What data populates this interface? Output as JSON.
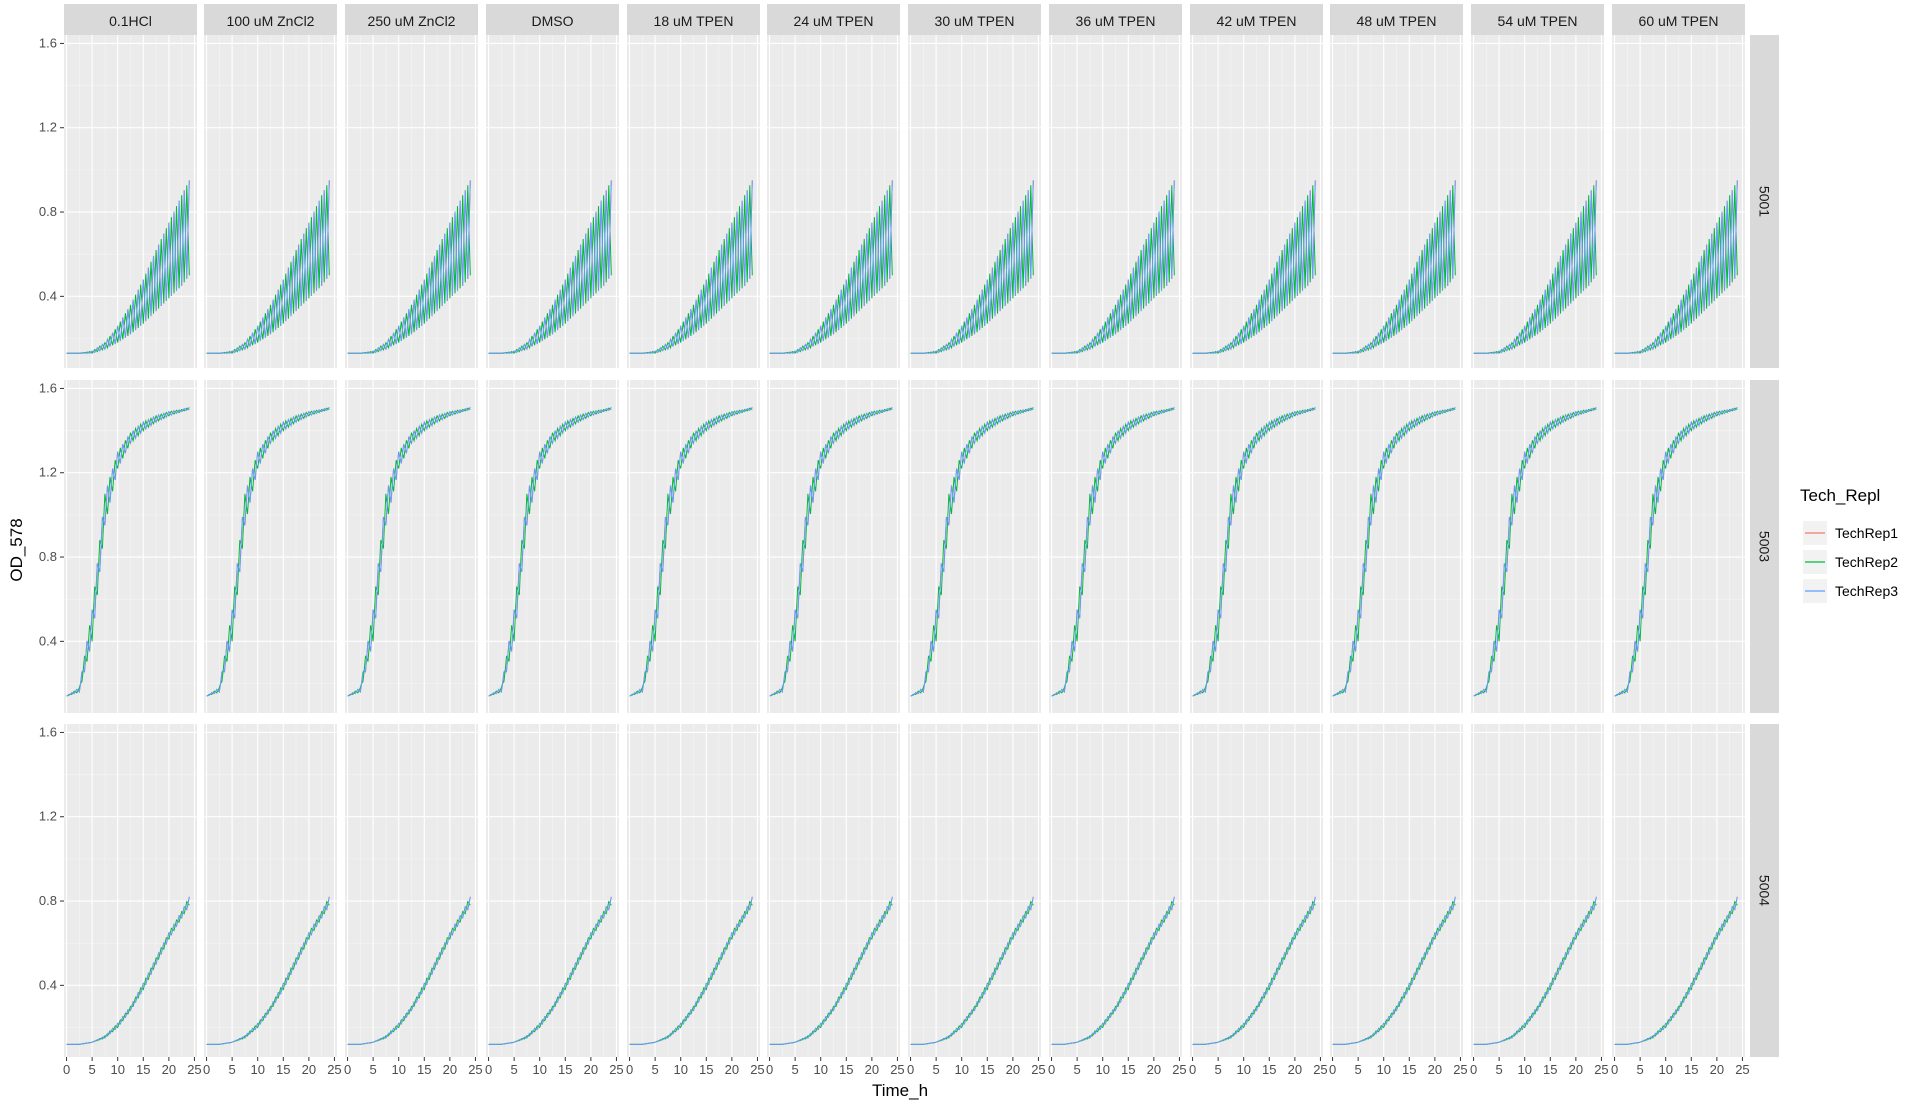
{
  "chart_data": {
    "type": "line",
    "facet_layout": "grid",
    "columns": [
      "0.1HCl",
      "100 uM ZnCl2",
      "250 uM ZnCl2",
      "DMSO",
      "18 uM TPEN",
      "24 uM TPEN",
      "30 uM TPEN",
      "36 uM TPEN",
      "42 uM TPEN",
      "48 uM TPEN",
      "54 uM TPEN",
      "60 uM TPEN"
    ],
    "rows": [
      "5001",
      "5003",
      "5004"
    ],
    "xlabel": "Time_h",
    "ylabel": "OD_578",
    "xlim": [
      -0.5,
      25.5
    ],
    "ylim": [
      0.06,
      1.64
    ],
    "x_ticks": [
      0,
      5,
      10,
      15,
      20,
      25
    ],
    "y_ticks": [
      0.4,
      0.8,
      1.2,
      1.6
    ],
    "y_tick_labels": [
      "0.4",
      "0.8",
      "1.2",
      "1.6"
    ],
    "grid": true,
    "legend": {
      "title": "Tech_Repl",
      "position": "right",
      "entries": [
        "TechRep1",
        "TechRep2",
        "TechRep3"
      ]
    },
    "colors": {
      "TechRep1": "#F8766D",
      "TechRep2": "#00BA38",
      "TechRep3": "#619CFF",
      "panel_background": "#EBEBEB",
      "strip_background": "#D9D9D9",
      "grid_major": "#FFFFFF",
      "grid_minor": "#F5F5F5"
    },
    "series": [
      {
        "name": "TechRep1",
        "time_h": [
          0,
          2.5,
          5,
          7.5,
          10,
          12.5,
          15,
          17.5,
          20,
          22.5,
          24
        ],
        "rows": {
          "5001": {
            "low": [
              0.13,
              0.13,
              0.13,
              0.15,
              0.18,
              0.22,
              0.27,
              0.33,
              0.39,
              0.45,
              0.5
            ],
            "high": [
              0.13,
              0.13,
              0.14,
              0.18,
              0.26,
              0.36,
              0.48,
              0.62,
              0.75,
              0.88,
              0.95
            ]
          },
          "5003": {
            "low": [
              0.14,
              0.16,
              0.4,
              0.95,
              1.22,
              1.34,
              1.4,
              1.44,
              1.47,
              1.49,
              1.5
            ],
            "high": [
              0.14,
              0.18,
              0.55,
              1.1,
              1.3,
              1.39,
              1.44,
              1.47,
              1.49,
              1.5,
              1.51
            ]
          },
          "5004": {
            "low": [
              0.12,
              0.12,
              0.13,
              0.15,
              0.2,
              0.28,
              0.38,
              0.5,
              0.62,
              0.72,
              0.78
            ],
            "high": [
              0.12,
              0.12,
              0.13,
              0.16,
              0.22,
              0.3,
              0.41,
              0.53,
              0.65,
              0.75,
              0.82
            ]
          }
        }
      },
      {
        "name": "TechRep2",
        "time_h": [
          0,
          2.5,
          5,
          7.5,
          10,
          12.5,
          15,
          17.5,
          20,
          22.5,
          24
        ],
        "rows": {
          "5001": {
            "low": [
              0.13,
              0.13,
              0.13,
              0.15,
              0.18,
              0.22,
              0.27,
              0.33,
              0.39,
              0.45,
              0.5
            ],
            "high": [
              0.13,
              0.13,
              0.14,
              0.18,
              0.26,
              0.36,
              0.48,
              0.62,
              0.75,
              0.88,
              0.95
            ]
          },
          "5003": {
            "low": [
              0.14,
              0.16,
              0.4,
              0.95,
              1.22,
              1.34,
              1.4,
              1.44,
              1.47,
              1.49,
              1.5
            ],
            "high": [
              0.14,
              0.18,
              0.55,
              1.1,
              1.3,
              1.39,
              1.44,
              1.47,
              1.49,
              1.5,
              1.51
            ]
          },
          "5004": {
            "low": [
              0.12,
              0.12,
              0.13,
              0.15,
              0.2,
              0.28,
              0.38,
              0.5,
              0.62,
              0.72,
              0.78
            ],
            "high": [
              0.12,
              0.12,
              0.13,
              0.16,
              0.22,
              0.3,
              0.41,
              0.53,
              0.65,
              0.75,
              0.82
            ]
          }
        }
      },
      {
        "name": "TechRep3",
        "time_h": [
          0,
          2.5,
          5,
          7.5,
          10,
          12.5,
          15,
          17.5,
          20,
          22.5,
          24
        ],
        "rows": {
          "5001": {
            "low": [
              0.13,
              0.13,
              0.13,
              0.15,
              0.18,
              0.22,
              0.27,
              0.33,
              0.39,
              0.45,
              0.5
            ],
            "high": [
              0.13,
              0.13,
              0.14,
              0.18,
              0.26,
              0.36,
              0.48,
              0.62,
              0.75,
              0.88,
              0.95
            ]
          },
          "5003": {
            "low": [
              0.14,
              0.16,
              0.4,
              0.95,
              1.22,
              1.34,
              1.4,
              1.44,
              1.47,
              1.49,
              1.5
            ],
            "high": [
              0.14,
              0.18,
              0.55,
              1.1,
              1.3,
              1.39,
              1.44,
              1.47,
              1.49,
              1.5,
              1.51
            ]
          },
          "5004": {
            "low": [
              0.12,
              0.12,
              0.13,
              0.15,
              0.2,
              0.28,
              0.38,
              0.5,
              0.62,
              0.72,
              0.78
            ],
            "high": [
              0.12,
              0.12,
              0.13,
              0.16,
              0.22,
              0.3,
              0.41,
              0.53,
              0.65,
              0.75,
              0.82
            ]
          }
        }
      }
    ]
  }
}
